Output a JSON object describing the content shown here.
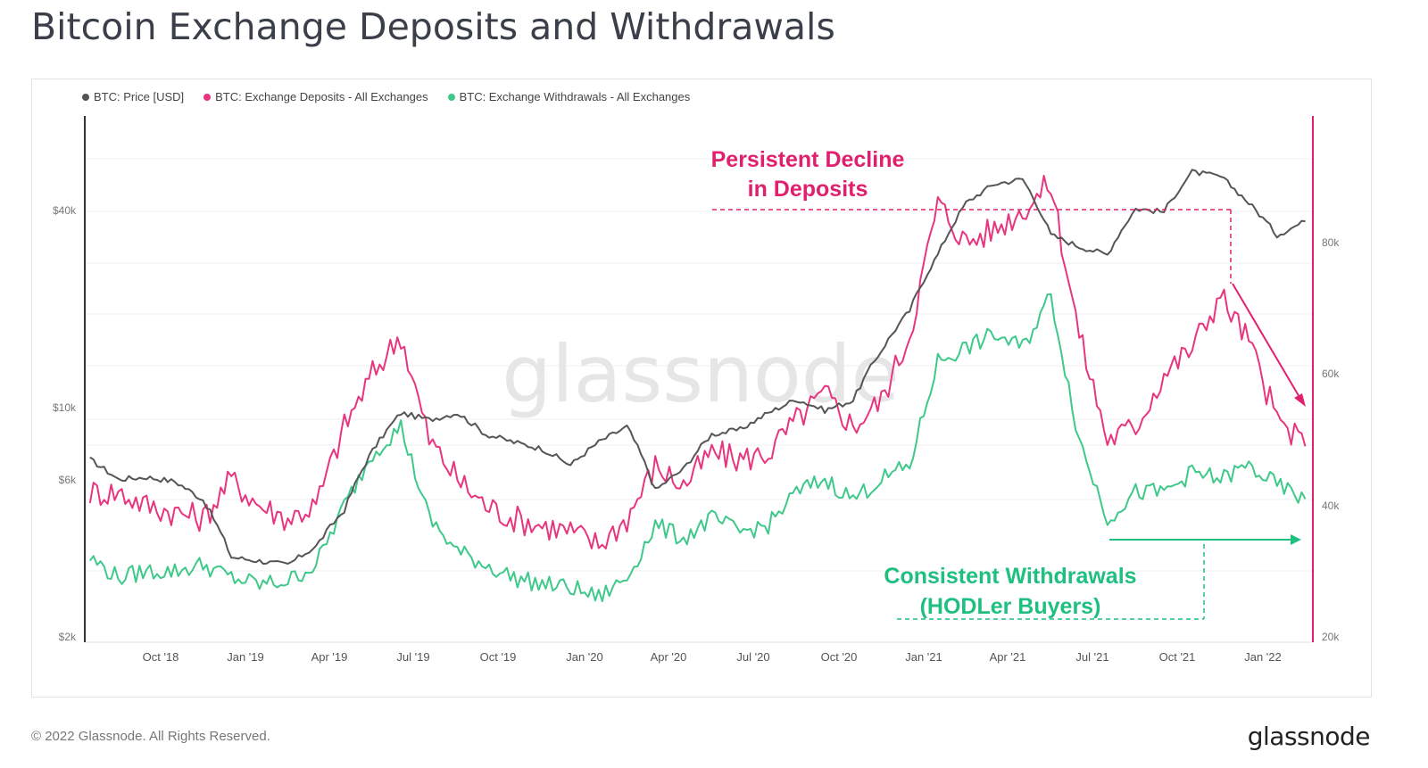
{
  "title": "Bitcoin Exchange Deposits and Withdrawals",
  "footer": {
    "copyright": "© 2022 Glassnode. All Rights Reserved.",
    "logo": "glassnode"
  },
  "watermark": "glassnode",
  "colors": {
    "price": "#555555",
    "deposits": "#e8357f",
    "withdrawals": "#3ec98a",
    "annotation_decline": "#e0206f",
    "annotation_withdrawals": "#1fbf80",
    "right_axis": "#e0206f"
  },
  "chart_data": {
    "type": "line",
    "x_ticks": [
      "Oct '18",
      "Jan '19",
      "Apr '19",
      "Jul '19",
      "Oct '19",
      "Jan '20",
      "Apr '20",
      "Jul '20",
      "Oct '20",
      "Jan '21",
      "Apr '21",
      "Jul '21",
      "Oct '21",
      "Jan '22"
    ],
    "y_left": {
      "scale": "log",
      "ticks": [
        "$40k",
        "$10k",
        "$6k",
        "$2k"
      ],
      "range": [
        2000,
        90000
      ]
    },
    "y_right": {
      "scale": "linear",
      "ticks": [
        "80k",
        "60k",
        "40k",
        "20k"
      ],
      "range": [
        20000,
        100000
      ]
    },
    "legend_position": "top-left",
    "series": [
      {
        "name": "BTC: Price [USD]",
        "axis": "left",
        "x": [
          "2018-07",
          "2018-08",
          "2018-09",
          "2018-10",
          "2018-11",
          "2018-12",
          "2019-01",
          "2019-02",
          "2019-03",
          "2019-04",
          "2019-05",
          "2019-06",
          "2019-07",
          "2019-08",
          "2019-09",
          "2019-10",
          "2019-11",
          "2019-12",
          "2020-01",
          "2020-02",
          "2020-03",
          "2020-04",
          "2020-05",
          "2020-06",
          "2020-07",
          "2020-08",
          "2020-09",
          "2020-10",
          "2020-11",
          "2020-12",
          "2021-01",
          "2021-02",
          "2021-03",
          "2021-04",
          "2021-05",
          "2021-06",
          "2021-07",
          "2021-08",
          "2021-09",
          "2021-10",
          "2021-11",
          "2021-12",
          "2022-01",
          "2022-02"
        ],
        "values": [
          7500,
          6500,
          6600,
          6400,
          5600,
          3700,
          3600,
          3500,
          4000,
          5200,
          8000,
          10500,
          10000,
          10500,
          9000,
          8500,
          8100,
          7200,
          8500,
          9500,
          6000,
          7000,
          9000,
          9300,
          10500,
          11600,
          10700,
          11500,
          16500,
          22000,
          33000,
          48000,
          55000,
          57000,
          38000,
          35000,
          33000,
          46000,
          45000,
          60000,
          58000,
          48000,
          38000,
          42000
        ]
      },
      {
        "name": "BTC: Exchange Deposits - All Exchanges",
        "axis": "right",
        "x": [
          "2018-07",
          "2018-08",
          "2018-09",
          "2018-10",
          "2018-11",
          "2018-12",
          "2019-01",
          "2019-02",
          "2019-03",
          "2019-04",
          "2019-05",
          "2019-06",
          "2019-07",
          "2019-08",
          "2019-09",
          "2019-10",
          "2019-11",
          "2019-12",
          "2020-01",
          "2020-02",
          "2020-03",
          "2020-04",
          "2020-05",
          "2020-06",
          "2020-07",
          "2020-08",
          "2020-09",
          "2020-10",
          "2020-11",
          "2020-12",
          "2021-01",
          "2021-02",
          "2021-03",
          "2021-04",
          "2021-05",
          "2021-06",
          "2021-07",
          "2021-08",
          "2021-09",
          "2021-10",
          "2021-11",
          "2021-12",
          "2022-01",
          "2022-02"
        ],
        "values": [
          42000,
          42000,
          40000,
          39000,
          38000,
          44000,
          40000,
          38000,
          40000,
          52000,
          60000,
          66000,
          50000,
          44000,
          40000,
          38000,
          37000,
          36000,
          34000,
          38000,
          46000,
          43000,
          48000,
          47000,
          48000,
          53000,
          57000,
          52000,
          56000,
          66000,
          86000,
          80000,
          82000,
          85000,
          89000,
          66000,
          50000,
          52000,
          60000,
          64000,
          72000,
          65000,
          53000,
          49000
        ]
      },
      {
        "name": "BTC: Exchange Withdrawals - All Exchanges",
        "axis": "right",
        "x": [
          "2018-07",
          "2018-08",
          "2018-09",
          "2018-10",
          "2018-11",
          "2018-12",
          "2019-01",
          "2019-02",
          "2019-03",
          "2019-04",
          "2019-05",
          "2019-06",
          "2019-07",
          "2019-08",
          "2019-09",
          "2019-10",
          "2019-11",
          "2019-12",
          "2020-01",
          "2020-02",
          "2020-03",
          "2020-04",
          "2020-05",
          "2020-06",
          "2020-07",
          "2020-08",
          "2020-09",
          "2020-10",
          "2020-11",
          "2020-12",
          "2021-01",
          "2021-02",
          "2021-03",
          "2021-04",
          "2021-05",
          "2021-06",
          "2021-07",
          "2021-08",
          "2021-09",
          "2021-10",
          "2021-11",
          "2021-12",
          "2022-01",
          "2022-02"
        ],
        "values": [
          32000,
          29000,
          30000,
          30000,
          31000,
          29000,
          28000,
          28500,
          31000,
          40000,
          48000,
          52000,
          38000,
          33000,
          31000,
          29000,
          28000,
          27500,
          26000,
          29000,
          37000,
          35000,
          38000,
          36000,
          37000,
          42000,
          44000,
          41000,
          44000,
          46000,
          62000,
          64000,
          66000,
          64000,
          72000,
          50000,
          38000,
          42000,
          42000,
          45000,
          44000,
          46000,
          43000,
          41000
        ]
      }
    ],
    "annotations": [
      {
        "text_lines": [
          "Persistent Decline",
          "in Deposits"
        ],
        "color": "#e0206f"
      },
      {
        "text_lines": [
          "Consistent Withdrawals",
          "(HODLer Buyers)"
        ],
        "color": "#1fbf80"
      }
    ]
  }
}
